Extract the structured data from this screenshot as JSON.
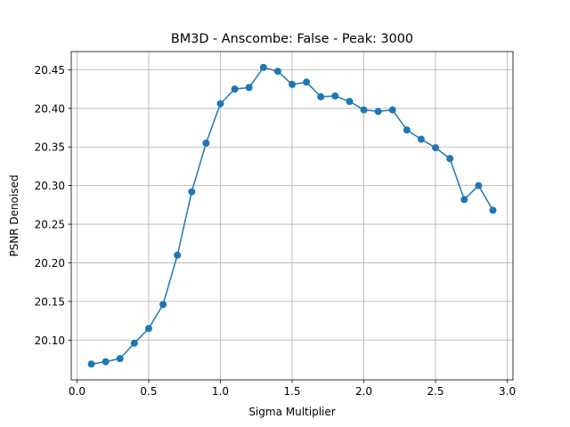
{
  "chart_data": {
    "type": "line",
    "title": "BM3D - Anscombe: False - Peak: 3000",
    "xlabel": "Sigma Multiplier",
    "ylabel": "PSNR Denoised",
    "xlim": [
      -0.04,
      3.04
    ],
    "ylim": [
      20.0485,
      20.4735
    ],
    "xticks": [
      0.0,
      0.5,
      1.0,
      1.5,
      2.0,
      2.5,
      3.0
    ],
    "xtick_labels": [
      "0.0",
      "0.5",
      "1.0",
      "1.5",
      "2.0",
      "2.5",
      "3.0"
    ],
    "yticks": [
      20.1,
      20.15,
      20.2,
      20.25,
      20.3,
      20.35,
      20.4,
      20.45
    ],
    "ytick_labels": [
      "20.10",
      "20.15",
      "20.20",
      "20.25",
      "20.30",
      "20.35",
      "20.40",
      "20.45"
    ],
    "grid": true,
    "color": "#1f77b4",
    "x": [
      0.1,
      0.2,
      0.3,
      0.4,
      0.5,
      0.6,
      0.7,
      0.8,
      0.9,
      1.0,
      1.1,
      1.2,
      1.3,
      1.4,
      1.5,
      1.6,
      1.7,
      1.8,
      1.9,
      2.0,
      2.1,
      2.2,
      2.3,
      2.4,
      2.5,
      2.6,
      2.7,
      2.8,
      2.9
    ],
    "y": [
      20.069,
      20.072,
      20.076,
      20.096,
      20.115,
      20.146,
      20.21,
      20.292,
      20.355,
      20.406,
      20.425,
      20.427,
      20.453,
      20.448,
      20.431,
      20.434,
      20.415,
      20.416,
      20.409,
      20.398,
      20.396,
      20.398,
      20.372,
      20.36,
      20.349,
      20.335,
      20.282,
      20.3,
      20.268
    ]
  }
}
